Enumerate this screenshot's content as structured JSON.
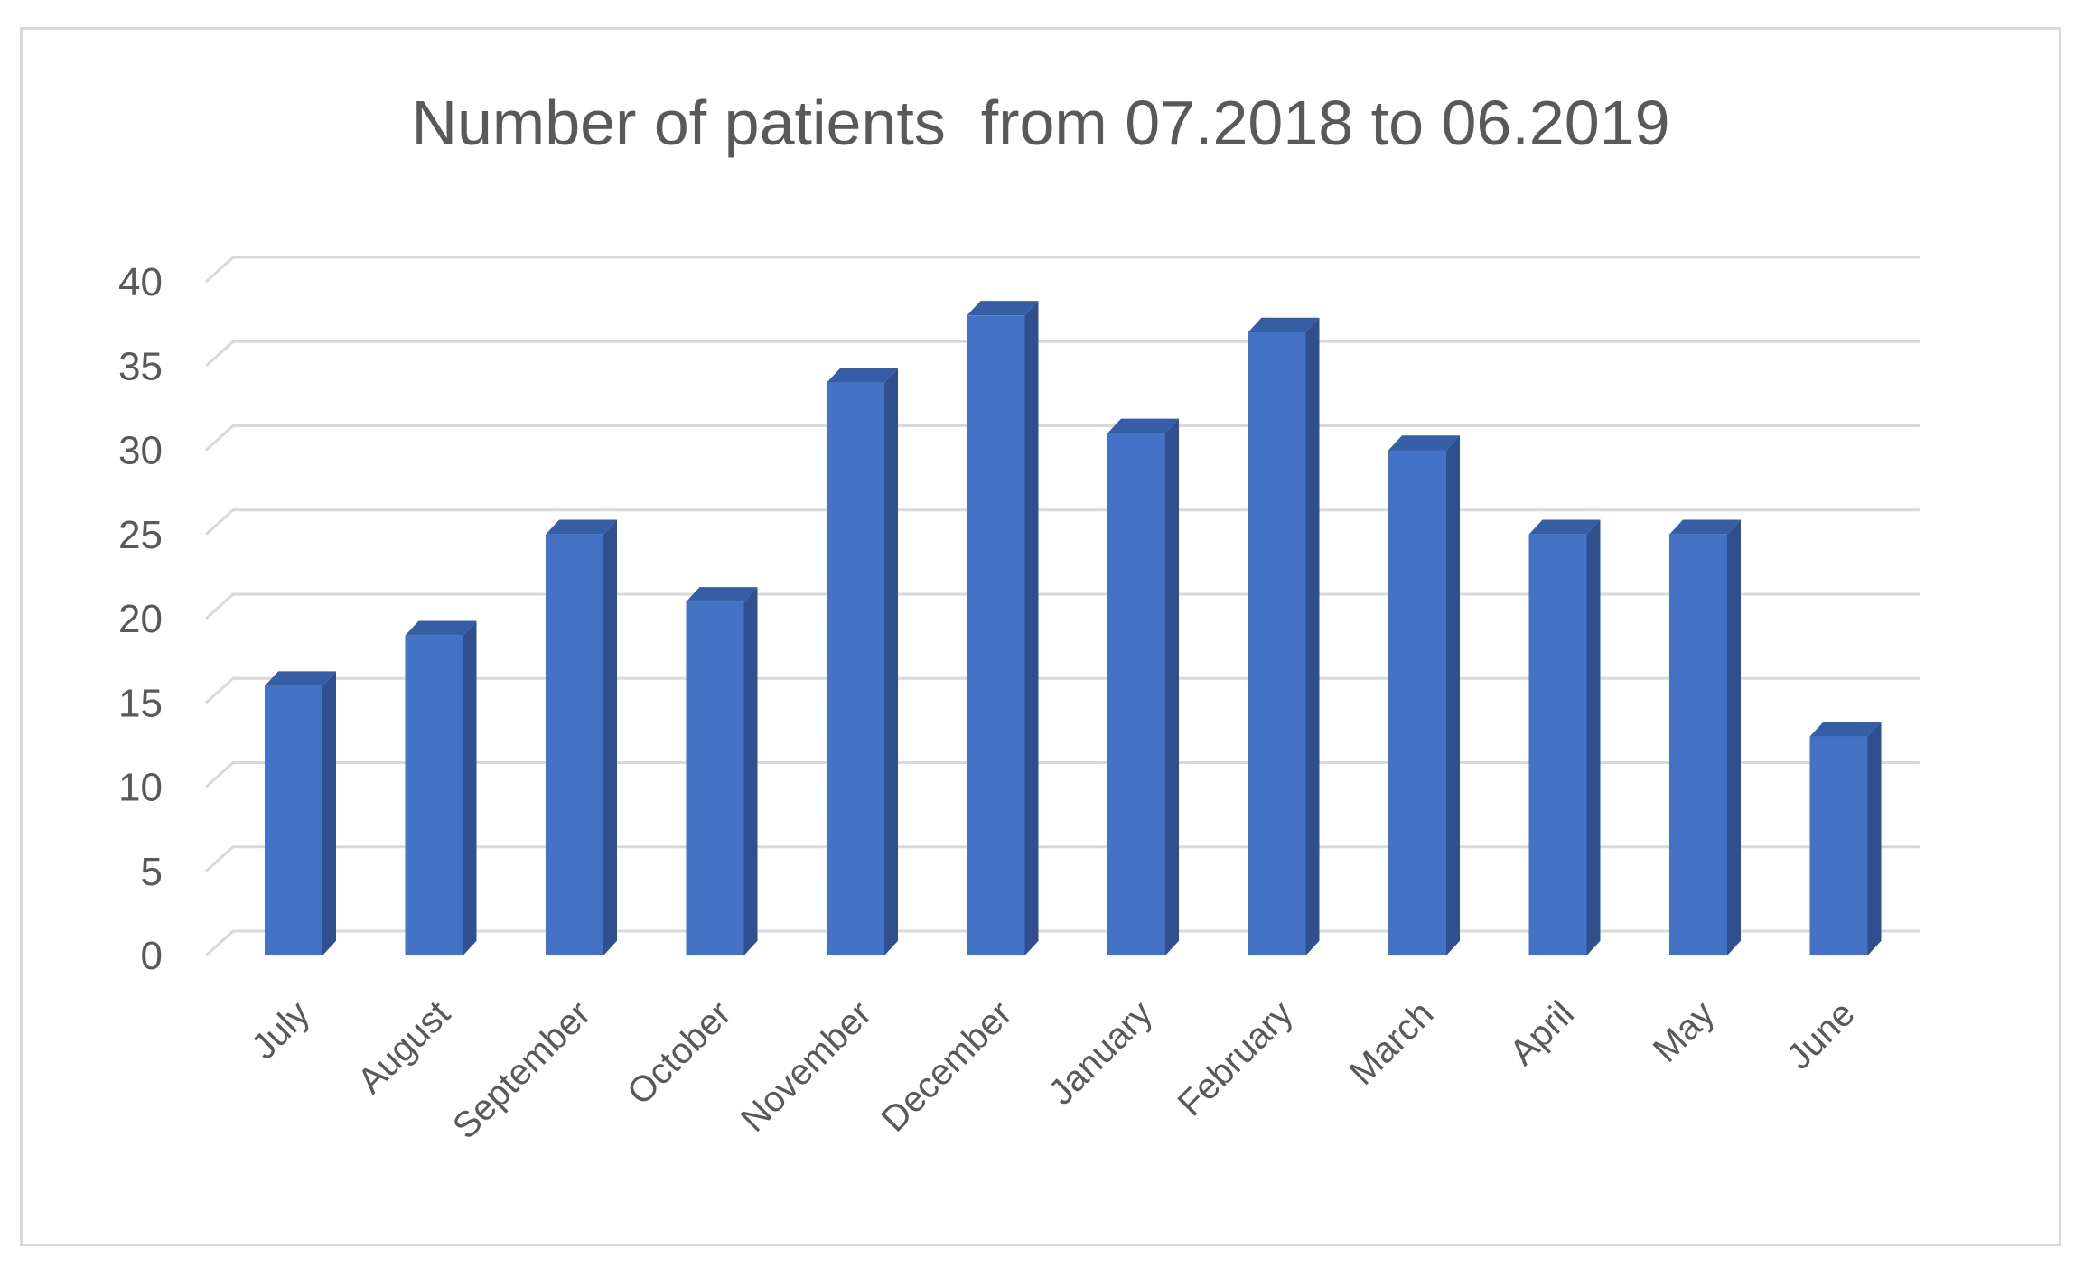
{
  "chart_data": {
    "type": "bar",
    "title": "Number of patients  from 07.2018 to 06.2019",
    "xlabel": "",
    "ylabel": "",
    "categories": [
      "July",
      "August",
      "September",
      "October",
      "November",
      "December",
      "January",
      "February",
      "March",
      "April",
      "May",
      "June"
    ],
    "values": [
      16,
      19,
      25,
      21,
      34,
      38,
      31,
      37,
      30,
      25,
      25,
      13
    ],
    "ylim": [
      0,
      40
    ],
    "yticks": [
      "0",
      "5",
      "10",
      "15",
      "20",
      "25",
      "30",
      "35",
      "40"
    ],
    "grid": true,
    "legend": "none",
    "style": "3d-column",
    "colors": {
      "bar_front": "#4472c4",
      "bar_side": "#2f4f8f",
      "bar_top": "#365ea6",
      "gridline": "#d9d9d9",
      "text": "#595959",
      "border": "#d9d9d9"
    }
  }
}
